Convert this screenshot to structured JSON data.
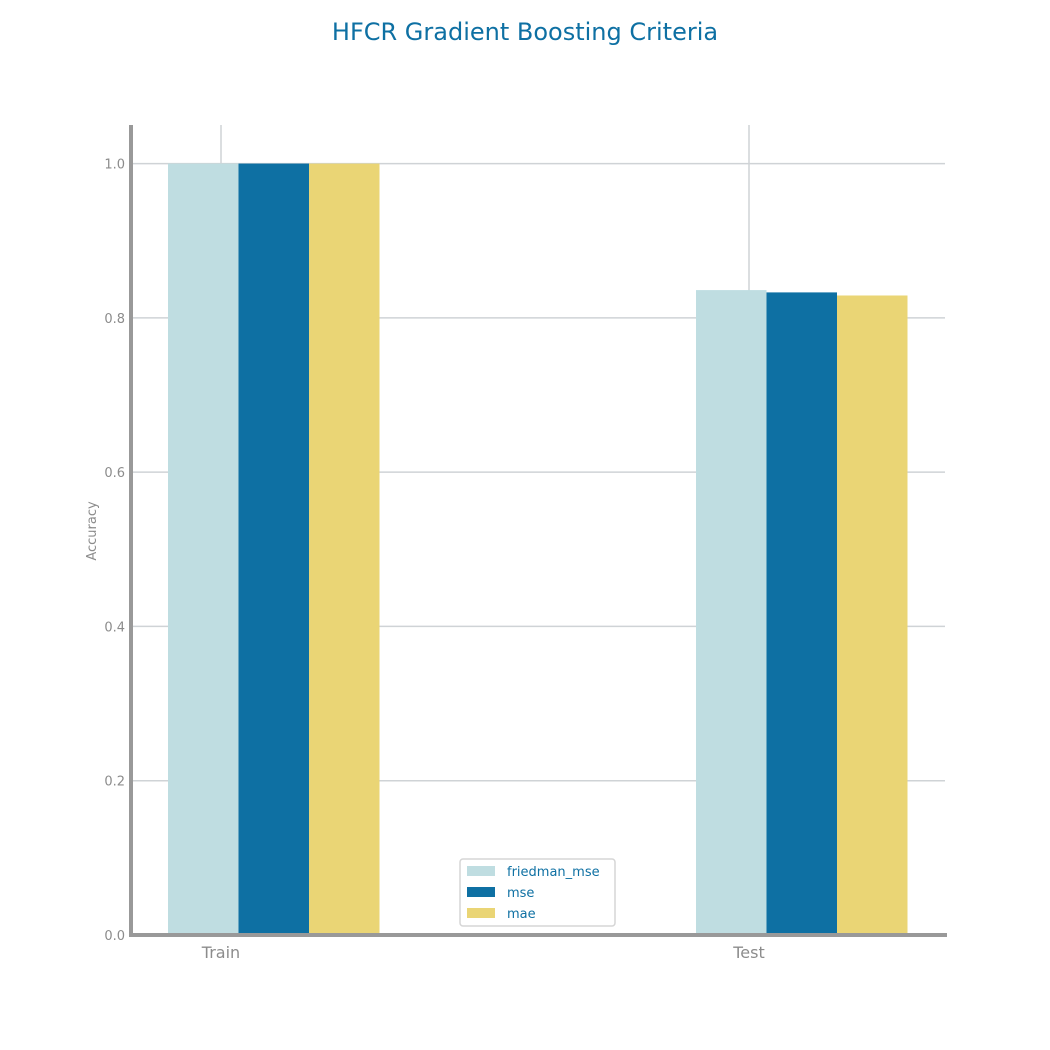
{
  "chart_data": {
    "type": "bar",
    "title": "HFCR Gradient Boosting Criteria",
    "xlabel": "",
    "ylabel": "Accuracy",
    "categories": [
      "Train",
      "Test"
    ],
    "series": [
      {
        "name": "friedman_mse",
        "values": [
          1.0,
          0.836
        ],
        "color": "#bfdde1"
      },
      {
        "name": "mse",
        "values": [
          1.0,
          0.833
        ],
        "color": "#0e70a3"
      },
      {
        "name": "mae",
        "values": [
          1.0,
          0.829
        ],
        "color": "#ead575"
      }
    ],
    "ylim": [
      0,
      1.05
    ],
    "yticks": [
      0.0,
      0.2,
      0.4,
      0.6,
      0.8,
      1.0
    ],
    "ytick_labels": [
      "0.0",
      "0.2",
      "0.4",
      "0.6",
      "0.8",
      "1.0"
    ],
    "grid": true,
    "legend_position": "bottom-center",
    "colors": {
      "title": "#0e70a3",
      "axis": "#999999",
      "grid": "#cfd3d6",
      "text": "#8c8c8c",
      "legend_text": "#0e70a3"
    }
  }
}
